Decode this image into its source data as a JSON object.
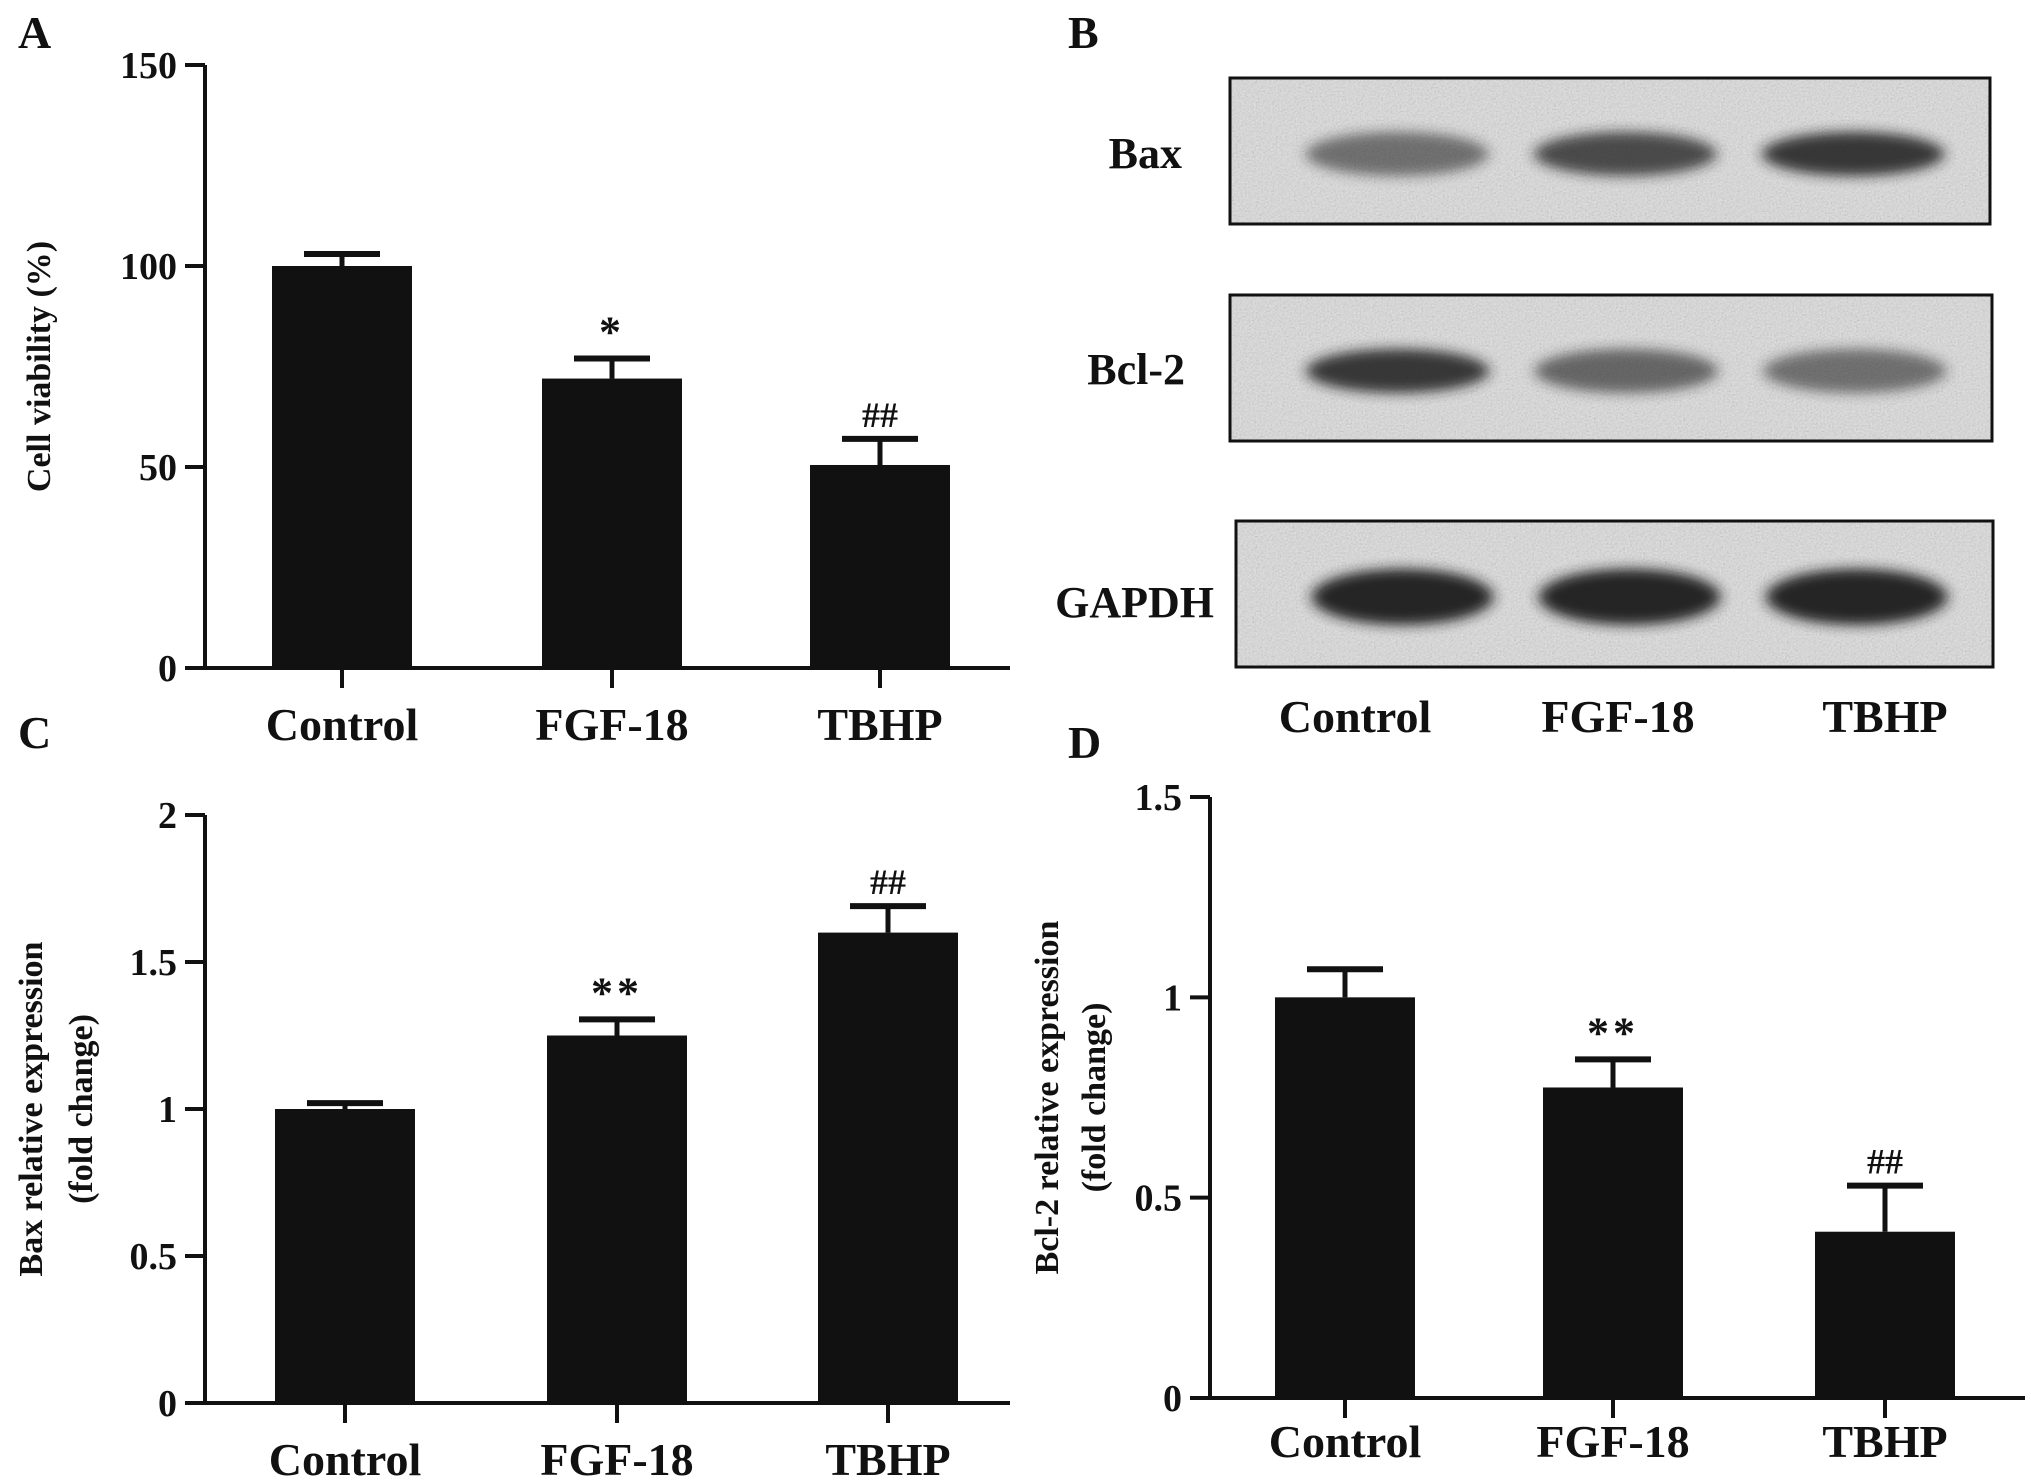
{
  "panels": {
    "A": "A",
    "B": "B",
    "C": "C",
    "D": "D"
  },
  "colors": {
    "bar": "#111111",
    "axis": "#111111",
    "blot_bg": "#e3e3e3",
    "band": "#1a1a1a"
  },
  "western_blot": {
    "rows": [
      {
        "label": "Bax",
        "band_intensity": [
          0.55,
          0.75,
          0.85
        ]
      },
      {
        "label": "Bcl-2",
        "band_intensity": [
          0.85,
          0.6,
          0.55
        ]
      },
      {
        "label": "GAPDH",
        "band_intensity": [
          0.95,
          0.95,
          0.95
        ]
      }
    ],
    "lanes": [
      "Control",
      "FGF-18",
      "TBHP"
    ]
  },
  "chart_data": [
    {
      "type": "bar",
      "panel": "A",
      "categories": [
        "Control",
        "FGF-18",
        "TBHP"
      ],
      "values": [
        100,
        72,
        50.5
      ],
      "errors": [
        3,
        5,
        6.5
      ],
      "annotations": [
        "",
        "*",
        "##"
      ],
      "ylabel": "Cell viability (%)",
      "ylabel2": "",
      "ylim": [
        0,
        150
      ],
      "yticks": [
        "0",
        "50",
        "100",
        "150"
      ],
      "ytick_values": [
        0,
        50,
        100,
        150
      ],
      "grid": false,
      "legend": "none"
    },
    {
      "type": "bar",
      "panel": "C",
      "categories": [
        "Control",
        "FGF-18",
        "TBHP"
      ],
      "values": [
        1.0,
        1.25,
        1.6
      ],
      "errors": [
        0.02,
        0.055,
        0.09
      ],
      "annotations": [
        "",
        "**",
        "##"
      ],
      "ylabel": "Bax relative expression",
      "ylabel2": "(fold change)",
      "ylim": [
        0,
        2
      ],
      "yticks": [
        "0",
        "0.5",
        "1",
        "1.5",
        "2"
      ],
      "ytick_values": [
        0,
        0.5,
        1,
        1.5,
        2
      ],
      "grid": false,
      "legend": "none"
    },
    {
      "type": "bar",
      "panel": "D",
      "categories": [
        "Control",
        "FGF-18",
        "TBHP"
      ],
      "values": [
        1.0,
        0.775,
        0.415
      ],
      "errors": [
        0.07,
        0.07,
        0.115
      ],
      "annotations": [
        "",
        "**",
        "##"
      ],
      "ylabel": "Bcl-2 relative expression",
      "ylabel2": "(fold change)",
      "ylim": [
        0,
        1.5
      ],
      "yticks": [
        "0",
        "0.5",
        "1",
        "1.5"
      ],
      "ytick_values": [
        0,
        0.5,
        1,
        1.5
      ],
      "grid": false,
      "legend": "none"
    }
  ]
}
